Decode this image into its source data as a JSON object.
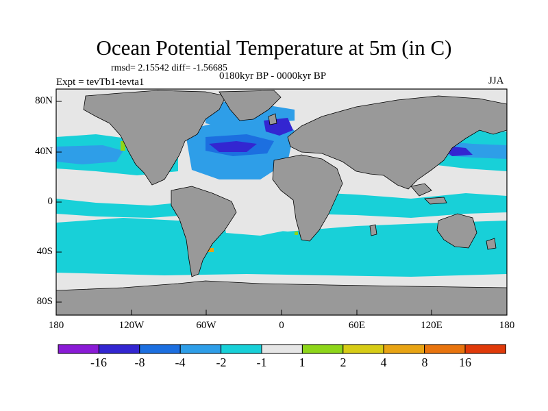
{
  "plot": {
    "title": "Ocean Potential Temperature at 5m (in C)",
    "stats": "rmsd= 2.15542 diff= -1.56685",
    "period": "0180kyr BP - 0000kyr BP",
    "experiment": "Expt = tevTb1-tevta1",
    "season": "JJA"
  },
  "axes": {
    "lat_labels": [
      "80N",
      "40N",
      "0",
      "40S",
      "80S"
    ],
    "lat_values": [
      80,
      40,
      0,
      -40,
      -80
    ],
    "lon_labels": [
      "180",
      "120W",
      "60W",
      "0",
      "60E",
      "120E",
      "180"
    ],
    "lon_values": [
      -180,
      -120,
      -60,
      0,
      60,
      120,
      180
    ]
  },
  "colorbar": {
    "labels": [
      "-16",
      "-8",
      "-4",
      "-2",
      "-1",
      "1",
      "2",
      "4",
      "8",
      "16"
    ],
    "colors": [
      "#8a1bd6",
      "#3326d1",
      "#1c6fe0",
      "#2e9ee8",
      "#18d0d8",
      "#e6e6e6",
      "#8ed61a",
      "#d7cc16",
      "#e8a414",
      "#e8740e",
      "#e03a0a"
    ]
  },
  "colors": {
    "land": "#999999",
    "ice": "#e6e6e6",
    "cool": "#18d0d8",
    "moderate": "#2e9ee8",
    "strong": "#1c6fe0",
    "deep": "#3326d1",
    "warm": "#8ed61a",
    "hot": "#e8a414"
  }
}
